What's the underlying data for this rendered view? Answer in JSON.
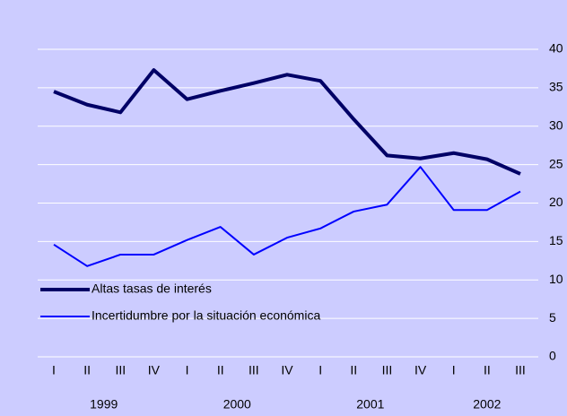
{
  "chart_data": {
    "type": "line",
    "categories": [
      "I",
      "II",
      "III",
      "IV",
      "I",
      "II",
      "III",
      "IV",
      "I",
      "II",
      "III",
      "IV",
      "I",
      "II",
      "III"
    ],
    "year_groups": [
      "1999",
      "2000",
      "2001",
      "2002"
    ],
    "series": [
      {
        "name": "Altas tasas de interés",
        "color": "#000066",
        "values": [
          34.5,
          32.8,
          31.8,
          37.3,
          33.5,
          34.6,
          35.6,
          36.7,
          35.9,
          30.9,
          26.2,
          25.8,
          26.5,
          25.7,
          23.8
        ]
      },
      {
        "name": "Incertidumbre por la situación económica",
        "color": "#0000ff",
        "values": [
          14.6,
          11.8,
          13.3,
          13.3,
          15.2,
          16.9,
          13.3,
          15.5,
          16.7,
          18.9,
          19.8,
          24.7,
          19.1,
          19.1,
          21.5
        ]
      }
    ],
    "ylim": [
      0,
      40
    ],
    "yticks": [
      0,
      5,
      10,
      15,
      20,
      25,
      30,
      35,
      40
    ],
    "grid": true,
    "legend": "left"
  }
}
